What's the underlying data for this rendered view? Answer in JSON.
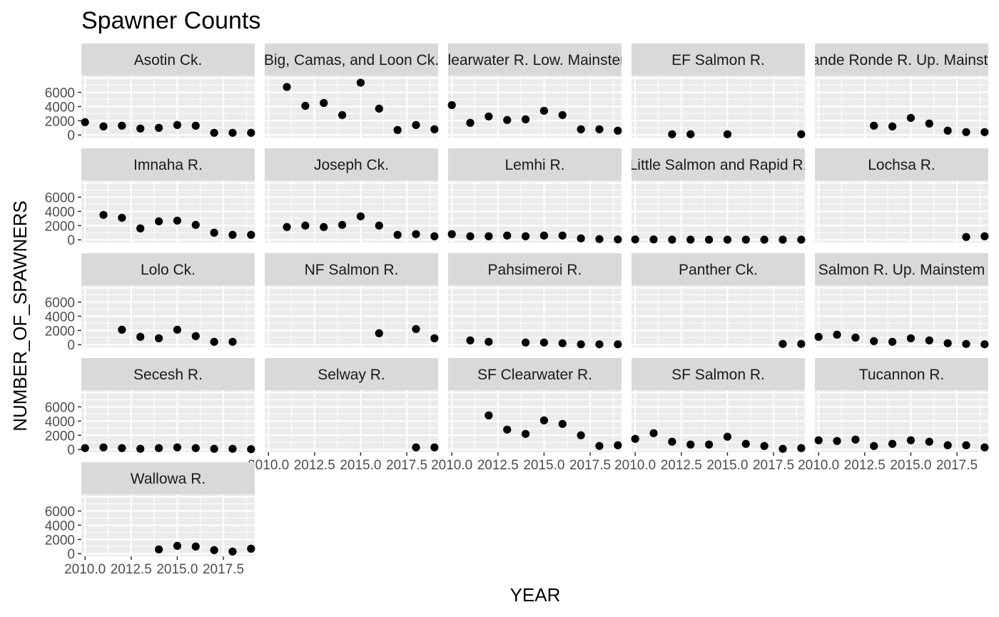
{
  "chart_data": {
    "type": "scatter",
    "title": "Spawner Counts",
    "xlabel": "YEAR",
    "ylabel": "NUMBER_OF_SPAWNERS",
    "xlim": [
      2009.8,
      2019.2
    ],
    "ylim": [
      -380,
      8350
    ],
    "x_ticks": [
      2010.0,
      2012.5,
      2015.0,
      2017.5
    ],
    "x_tick_labels": [
      "2010.0",
      "2012.5",
      "2015.0",
      "2017.5"
    ],
    "y_ticks": [
      0,
      2000,
      4000,
      6000
    ],
    "y_tick_labels": [
      "0",
      "2000",
      "4000",
      "6000"
    ],
    "grid": true,
    "facet_columns": 5,
    "panels": [
      {
        "label": "Asotin Ck.",
        "points": [
          [
            2010,
            1800
          ],
          [
            2011,
            1200
          ],
          [
            2012,
            1300
          ],
          [
            2013,
            900
          ],
          [
            2014,
            1000
          ],
          [
            2015,
            1400
          ],
          [
            2016,
            1300
          ],
          [
            2017,
            300
          ],
          [
            2018,
            300
          ],
          [
            2019,
            300
          ]
        ]
      },
      {
        "label": "Big, Camas, and Loon Ck.",
        "points": [
          [
            2011,
            6750
          ],
          [
            2012,
            4100
          ],
          [
            2013,
            4500
          ],
          [
            2014,
            2800
          ],
          [
            2015,
            7350
          ],
          [
            2016,
            3700
          ],
          [
            2017,
            700
          ],
          [
            2018,
            1400
          ],
          [
            2019,
            800
          ]
        ]
      },
      {
        "label": "Clearwater R. Low. Mainstem",
        "points": [
          [
            2010,
            4200
          ],
          [
            2011,
            1700
          ],
          [
            2012,
            2600
          ],
          [
            2013,
            2100
          ],
          [
            2014,
            2200
          ],
          [
            2015,
            3400
          ],
          [
            2016,
            2800
          ],
          [
            2017,
            800
          ],
          [
            2018,
            800
          ],
          [
            2019,
            600
          ]
        ]
      },
      {
        "label": "EF Salmon R.",
        "points": [
          [
            2012,
            100
          ],
          [
            2013,
            100
          ],
          [
            2015,
            100
          ],
          [
            2019,
            100
          ]
        ]
      },
      {
        "label": "Grande Ronde R. Up. Mainstem",
        "points": [
          [
            2013,
            1300
          ],
          [
            2014,
            1200
          ],
          [
            2015,
            2400
          ],
          [
            2016,
            1600
          ],
          [
            2017,
            600
          ],
          [
            2018,
            400
          ],
          [
            2019,
            400
          ]
        ]
      },
      {
        "label": "Imnaha R.",
        "points": [
          [
            2011,
            3500
          ],
          [
            2012,
            3100
          ],
          [
            2013,
            1600
          ],
          [
            2014,
            2600
          ],
          [
            2015,
            2700
          ],
          [
            2016,
            2100
          ],
          [
            2017,
            1000
          ],
          [
            2018,
            700
          ],
          [
            2019,
            700
          ]
        ]
      },
      {
        "label": "Joseph Ck.",
        "points": [
          [
            2011,
            1800
          ],
          [
            2012,
            2000
          ],
          [
            2013,
            1800
          ],
          [
            2014,
            2100
          ],
          [
            2015,
            3300
          ],
          [
            2016,
            2000
          ],
          [
            2017,
            700
          ],
          [
            2018,
            800
          ],
          [
            2019,
            500
          ]
        ]
      },
      {
        "label": "Lemhi R.",
        "points": [
          [
            2010,
            800
          ],
          [
            2011,
            500
          ],
          [
            2012,
            500
          ],
          [
            2013,
            600
          ],
          [
            2014,
            500
          ],
          [
            2015,
            600
          ],
          [
            2016,
            600
          ],
          [
            2017,
            200
          ],
          [
            2018,
            100
          ],
          [
            2019,
            50
          ]
        ]
      },
      {
        "label": "Little Salmon and Rapid R.",
        "points": [
          [
            2010,
            50
          ],
          [
            2011,
            50
          ],
          [
            2012,
            20
          ],
          [
            2013,
            20
          ],
          [
            2014,
            20
          ],
          [
            2015,
            20
          ],
          [
            2016,
            20
          ],
          [
            2017,
            20
          ],
          [
            2018,
            20
          ],
          [
            2019,
            20
          ]
        ]
      },
      {
        "label": "Lochsa R.",
        "points": [
          [
            2018,
            400
          ],
          [
            2019,
            500
          ]
        ]
      },
      {
        "label": "Lolo Ck.",
        "points": [
          [
            2012,
            2100
          ],
          [
            2013,
            1100
          ],
          [
            2014,
            900
          ],
          [
            2015,
            2100
          ],
          [
            2016,
            1200
          ],
          [
            2017,
            400
          ],
          [
            2018,
            400
          ]
        ]
      },
      {
        "label": "NF Salmon R.",
        "points": [
          [
            2016,
            1600
          ],
          [
            2018,
            2200
          ],
          [
            2019,
            900
          ]
        ]
      },
      {
        "label": "Pahsimeroi R.",
        "points": [
          [
            2011,
            600
          ],
          [
            2012,
            400
          ],
          [
            2014,
            300
          ],
          [
            2015,
            300
          ],
          [
            2016,
            200
          ],
          [
            2017,
            50
          ],
          [
            2018,
            50
          ],
          [
            2019,
            50
          ]
        ]
      },
      {
        "label": "Panther Ck.",
        "points": [
          [
            2018,
            100
          ],
          [
            2019,
            100
          ]
        ]
      },
      {
        "label": "Salmon R. Up. Mainstem",
        "points": [
          [
            2010,
            1100
          ],
          [
            2011,
            1400
          ],
          [
            2012,
            1000
          ],
          [
            2013,
            500
          ],
          [
            2014,
            400
          ],
          [
            2015,
            900
          ],
          [
            2016,
            600
          ],
          [
            2017,
            200
          ],
          [
            2018,
            100
          ],
          [
            2019,
            50
          ]
        ]
      },
      {
        "label": "Secesh R.",
        "points": [
          [
            2010,
            200
          ],
          [
            2011,
            300
          ],
          [
            2012,
            200
          ],
          [
            2013,
            100
          ],
          [
            2014,
            200
          ],
          [
            2015,
            300
          ],
          [
            2016,
            200
          ],
          [
            2017,
            100
          ],
          [
            2018,
            100
          ],
          [
            2019,
            50
          ]
        ]
      },
      {
        "label": "Selway R.",
        "points": [
          [
            2018,
            300
          ],
          [
            2019,
            300
          ]
        ]
      },
      {
        "label": "SF Clearwater R.",
        "points": [
          [
            2012,
            4800
          ],
          [
            2013,
            2800
          ],
          [
            2014,
            2200
          ],
          [
            2015,
            4100
          ],
          [
            2016,
            3600
          ],
          [
            2017,
            2000
          ],
          [
            2018,
            500
          ],
          [
            2019,
            600
          ]
        ]
      },
      {
        "label": "SF Salmon R.",
        "points": [
          [
            2010,
            1500
          ],
          [
            2011,
            2300
          ],
          [
            2012,
            1100
          ],
          [
            2013,
            700
          ],
          [
            2014,
            700
          ],
          [
            2015,
            1800
          ],
          [
            2016,
            800
          ],
          [
            2017,
            500
          ],
          [
            2018,
            100
          ],
          [
            2019,
            200
          ]
        ]
      },
      {
        "label": "Tucannon R.",
        "points": [
          [
            2010,
            1300
          ],
          [
            2011,
            1200
          ],
          [
            2012,
            1400
          ],
          [
            2013,
            500
          ],
          [
            2014,
            800
          ],
          [
            2015,
            1300
          ],
          [
            2016,
            1100
          ],
          [
            2017,
            600
          ],
          [
            2018,
            600
          ],
          [
            2019,
            300
          ]
        ]
      },
      {
        "label": "Wallowa R.",
        "points": [
          [
            2014,
            600
          ],
          [
            2015,
            1100
          ],
          [
            2016,
            1000
          ],
          [
            2017,
            500
          ],
          [
            2018,
            300
          ],
          [
            2019,
            700
          ]
        ]
      }
    ]
  }
}
